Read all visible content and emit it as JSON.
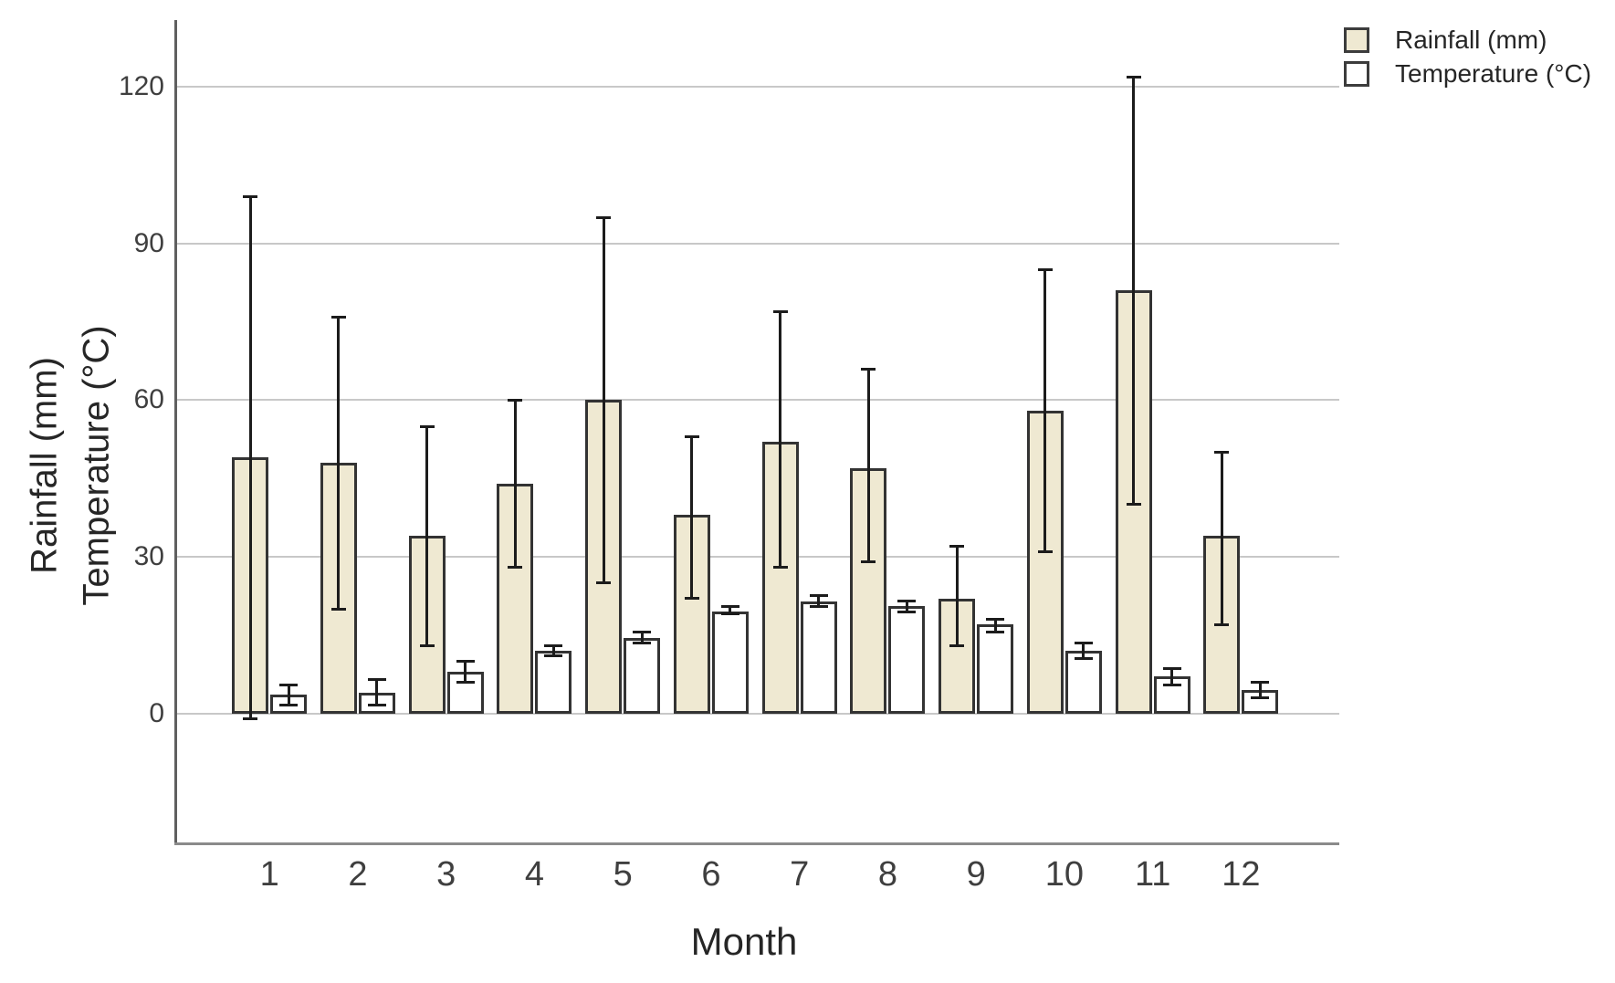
{
  "chart_data": {
    "type": "bar",
    "title": "",
    "xlabel": "Month",
    "ylabel_lines": [
      "Rainfall (mm)",
      "Temperature (°C)"
    ],
    "categories": [
      "1",
      "2",
      "3",
      "4",
      "5",
      "6",
      "7",
      "8",
      "9",
      "10",
      "11",
      "12"
    ],
    "y_ticks": [
      0,
      30,
      60,
      90,
      120
    ],
    "ylim": [
      -25,
      133
    ],
    "grid": "horizontal",
    "legend": {
      "position": "top-right",
      "entries": [
        {
          "label": "Rainfall (mm)",
          "swatch_color": "#efe9d2"
        },
        {
          "label": "Temperature (°C)",
          "swatch_color": "#ffffff"
        }
      ]
    },
    "series": [
      {
        "name": "Rainfall (mm)",
        "color": "#efe9d2",
        "values": [
          49,
          48,
          34,
          44,
          60,
          38,
          52,
          47,
          22,
          58,
          81,
          34
        ],
        "error_low": [
          -1,
          20,
          13,
          28,
          25,
          22,
          28,
          29,
          13,
          31,
          40,
          17
        ],
        "error_high": [
          99,
          76,
          55,
          60,
          95,
          53,
          77,
          66,
          32,
          85,
          122,
          50
        ]
      },
      {
        "name": "Temperature (°C)",
        "color": "#ffffff",
        "values": [
          3.5,
          4,
          8,
          12,
          14.5,
          19.5,
          21.5,
          20.5,
          17,
          12,
          7,
          4.5
        ],
        "error_low": [
          1.5,
          1.5,
          6,
          11,
          13.5,
          19,
          20.5,
          19.5,
          15.5,
          10.5,
          5.5,
          3
        ],
        "error_high": [
          5.5,
          6.5,
          10,
          13,
          15.5,
          20.5,
          22.5,
          21.5,
          18,
          13.5,
          8.5,
          6
        ]
      }
    ],
    "colors": {
      "bar_border": "#333333",
      "error_bar": "#1c1c1c",
      "gridline": "#c8c8c8",
      "y_axis_line": "#5f5f5f",
      "x_axis_line": "#8a8a8a",
      "tick_text": "#3f3f3f",
      "title_text": "#262626"
    }
  }
}
